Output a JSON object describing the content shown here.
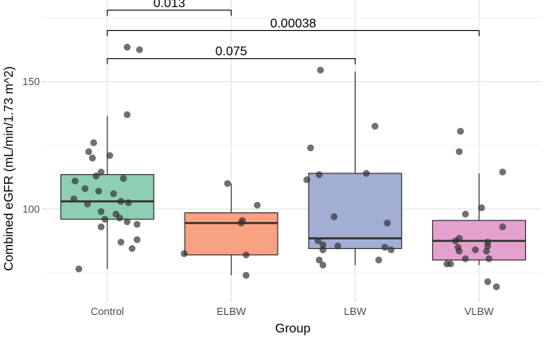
{
  "chart_data": {
    "type": "boxplot",
    "xlabel": "Group",
    "ylabel": "Combined eGFR (mL/min/1.73 m^2)",
    "ylim": [
      65,
      182
    ],
    "yticks": [
      100,
      150
    ],
    "grid": true,
    "categories": [
      "Control",
      "ELBW",
      "LBW",
      "VLBW"
    ],
    "colors": {
      "Control": "#8ecfb3",
      "ELBW": "#f9a283",
      "LBW": "#a2aed3",
      "VLBW": "#e5a1cd"
    },
    "boxes": [
      {
        "group": "Control",
        "whisker_low": 76.5,
        "q1": 96,
        "median": 103,
        "q3": 113.5,
        "whisker_high": 136.5
      },
      {
        "group": "ELBW",
        "whisker_low": 74,
        "q1": 82,
        "median": 94.5,
        "q3": 98.5,
        "whisker_high": 110
      },
      {
        "group": "LBW",
        "whisker_low": 78,
        "q1": 84.5,
        "median": 88.5,
        "q3": 114,
        "whisker_high": 154
      },
      {
        "group": "VLBW",
        "whisker_low": 78,
        "q1": 80,
        "median": 87.5,
        "q3": 95.5,
        "whisker_high": 114
      }
    ],
    "points": [
      {
        "group": "Control",
        "jitter": 0.16,
        "y": 163.5
      },
      {
        "group": "Control",
        "jitter": 0.26,
        "y": 162.5
      },
      {
        "group": "Control",
        "jitter": 0.16,
        "y": 137
      },
      {
        "group": "Control",
        "jitter": -0.11,
        "y": 126
      },
      {
        "group": "Control",
        "jitter": -0.15,
        "y": 122.5
      },
      {
        "group": "Control",
        "jitter": 0.02,
        "y": 121
      },
      {
        "group": "Control",
        "jitter": -0.12,
        "y": 120
      },
      {
        "group": "Control",
        "jitter": -0.05,
        "y": 114.5
      },
      {
        "group": "Control",
        "jitter": -0.09,
        "y": 113
      },
      {
        "group": "Control",
        "jitter": 0.13,
        "y": 112
      },
      {
        "group": "Control",
        "jitter": -0.26,
        "y": 111
      },
      {
        "group": "Control",
        "jitter": -0.18,
        "y": 108
      },
      {
        "group": "Control",
        "jitter": -0.07,
        "y": 107
      },
      {
        "group": "Control",
        "jitter": 0.05,
        "y": 106
      },
      {
        "group": "Control",
        "jitter": -0.27,
        "y": 104
      },
      {
        "group": "Control",
        "jitter": 0.11,
        "y": 103
      },
      {
        "group": "Control",
        "jitter": 0.17,
        "y": 102.5
      },
      {
        "group": "Control",
        "jitter": -0.16,
        "y": 102
      },
      {
        "group": "Control",
        "jitter": -0.05,
        "y": 99
      },
      {
        "group": "Control",
        "jitter": 0.07,
        "y": 98
      },
      {
        "group": "Control",
        "jitter": 0.1,
        "y": 96.5
      },
      {
        "group": "Control",
        "jitter": -0.02,
        "y": 96
      },
      {
        "group": "Control",
        "jitter": 0.16,
        "y": 95
      },
      {
        "group": "Control",
        "jitter": 0.24,
        "y": 94
      },
      {
        "group": "Control",
        "jitter": -0.05,
        "y": 93
      },
      {
        "group": "Control",
        "jitter": 0.24,
        "y": 88
      },
      {
        "group": "Control",
        "jitter": 0.11,
        "y": 87
      },
      {
        "group": "Control",
        "jitter": 0.2,
        "y": 84.5
      },
      {
        "group": "Control",
        "jitter": -0.23,
        "y": 76.5
      },
      {
        "group": "ELBW",
        "jitter": -0.03,
        "y": 110
      },
      {
        "group": "ELBW",
        "jitter": 0.21,
        "y": 101.5
      },
      {
        "group": "ELBW",
        "jitter": 0.09,
        "y": 95.5
      },
      {
        "group": "ELBW",
        "jitter": 0.08,
        "y": 94.5
      },
      {
        "group": "ELBW",
        "jitter": -0.38,
        "y": 82.5
      },
      {
        "group": "ELBW",
        "jitter": 0.12,
        "y": 82
      },
      {
        "group": "ELBW",
        "jitter": 0.12,
        "y": 74
      },
      {
        "group": "LBW",
        "jitter": -0.28,
        "y": 154.5
      },
      {
        "group": "LBW",
        "jitter": 0.16,
        "y": 132.5
      },
      {
        "group": "LBW",
        "jitter": -0.36,
        "y": 124
      },
      {
        "group": "LBW",
        "jitter": 0.09,
        "y": 114
      },
      {
        "group": "LBW",
        "jitter": -0.29,
        "y": 113.5
      },
      {
        "group": "LBW",
        "jitter": -0.39,
        "y": 111.5
      },
      {
        "group": "LBW",
        "jitter": -0.17,
        "y": 97
      },
      {
        "group": "LBW",
        "jitter": 0.26,
        "y": 94.5
      },
      {
        "group": "LBW",
        "jitter": -0.3,
        "y": 87.5
      },
      {
        "group": "LBW",
        "jitter": -0.26,
        "y": 86
      },
      {
        "group": "LBW",
        "jitter": -0.14,
        "y": 85.5
      },
      {
        "group": "LBW",
        "jitter": 0.24,
        "y": 85
      },
      {
        "group": "LBW",
        "jitter": -0.26,
        "y": 84
      },
      {
        "group": "LBW",
        "jitter": 0.29,
        "y": 84
      },
      {
        "group": "LBW",
        "jitter": -0.29,
        "y": 80
      },
      {
        "group": "LBW",
        "jitter": 0.19,
        "y": 80
      },
      {
        "group": "LBW",
        "jitter": -0.26,
        "y": 78
      },
      {
        "group": "VLBW",
        "jitter": -0.15,
        "y": 130.5
      },
      {
        "group": "VLBW",
        "jitter": -0.16,
        "y": 122.5
      },
      {
        "group": "VLBW",
        "jitter": 0.19,
        "y": 114.5
      },
      {
        "group": "VLBW",
        "jitter": 0.02,
        "y": 100.5
      },
      {
        "group": "VLBW",
        "jitter": -0.11,
        "y": 98
      },
      {
        "group": "VLBW",
        "jitter": 0.19,
        "y": 93
      },
      {
        "group": "VLBW",
        "jitter": -0.16,
        "y": 88.5
      },
      {
        "group": "VLBW",
        "jitter": -0.19,
        "y": 87.5
      },
      {
        "group": "VLBW",
        "jitter": 0.07,
        "y": 87
      },
      {
        "group": "VLBW",
        "jitter": 0.07,
        "y": 85.5
      },
      {
        "group": "VLBW",
        "jitter": -0.17,
        "y": 85
      },
      {
        "group": "VLBW",
        "jitter": -0.03,
        "y": 84
      },
      {
        "group": "VLBW",
        "jitter": -0.16,
        "y": 83.5
      },
      {
        "group": "VLBW",
        "jitter": 0.06,
        "y": 83.5
      },
      {
        "group": "VLBW",
        "jitter": -0.11,
        "y": 80.5
      },
      {
        "group": "VLBW",
        "jitter": 0.08,
        "y": 80.5
      },
      {
        "group": "VLBW",
        "jitter": -0.23,
        "y": 78.5
      },
      {
        "group": "VLBW",
        "jitter": -0.26,
        "y": 78.5
      },
      {
        "group": "VLBW",
        "jitter": 0.07,
        "y": 71.5
      },
      {
        "group": "VLBW",
        "jitter": 0.14,
        "y": 69.5
      }
    ],
    "comparisons": [
      {
        "from": "Control",
        "to": "ELBW",
        "p": "0.013",
        "y": 178
      },
      {
        "from": "Control",
        "to": "VLBW",
        "p": "0.00038",
        "y": 170
      },
      {
        "from": "Control",
        "to": "LBW",
        "p": "0.075",
        "y": 159
      }
    ]
  }
}
